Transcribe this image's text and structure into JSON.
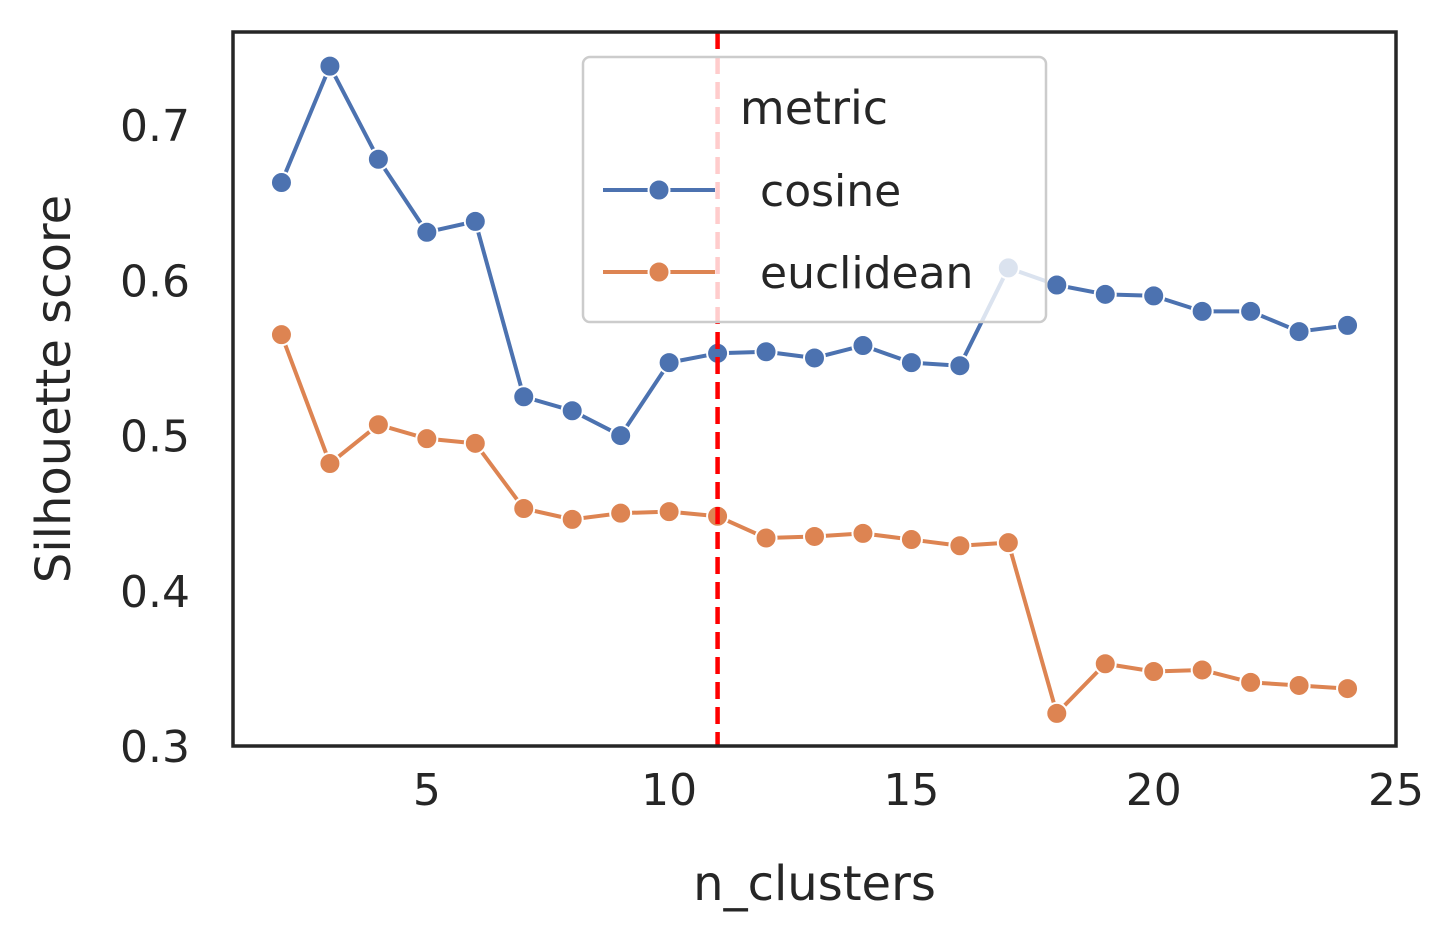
{
  "chart_data": {
    "type": "line",
    "xlabel": "n_clusters",
    "ylabel": "Silhouette score",
    "xlim": [
      1,
      25
    ],
    "ylim": [
      0.3,
      0.76
    ],
    "xticks": [
      5,
      10,
      15,
      20,
      25
    ],
    "yticks": [
      0.3,
      0.4,
      0.5,
      0.6,
      0.7
    ],
    "xtick_labels": [
      "5",
      "10",
      "15",
      "20",
      "25"
    ],
    "ytick_labels": [
      "0.3",
      "0.4",
      "0.5",
      "0.6",
      "0.7"
    ],
    "grid": false,
    "legend": {
      "title": "metric",
      "position": "upper-center"
    },
    "vline": {
      "x": 11,
      "color": "#ff0000",
      "style": "dashed"
    },
    "x": [
      2,
      3,
      4,
      5,
      6,
      7,
      8,
      9,
      10,
      11,
      12,
      13,
      14,
      15,
      16,
      17,
      18,
      19,
      20,
      21,
      22,
      23,
      24
    ],
    "series": [
      {
        "name": "cosine",
        "color": "#4c72b0",
        "values": [
          0.663,
          0.738,
          0.678,
          0.631,
          0.638,
          0.525,
          0.516,
          0.5,
          0.547,
          0.553,
          0.554,
          0.55,
          0.558,
          0.547,
          0.545,
          0.608,
          0.597,
          0.591,
          0.59,
          0.58,
          0.58,
          0.567,
          0.571
        ]
      },
      {
        "name": "euclidean",
        "color": "#dd8452",
        "values": [
          0.565,
          0.482,
          0.507,
          0.498,
          0.495,
          0.453,
          0.446,
          0.45,
          0.451,
          0.448,
          0.434,
          0.435,
          0.437,
          0.433,
          0.429,
          0.431,
          0.321,
          0.353,
          0.348,
          0.349,
          0.341,
          0.339,
          0.337
        ]
      }
    ]
  }
}
